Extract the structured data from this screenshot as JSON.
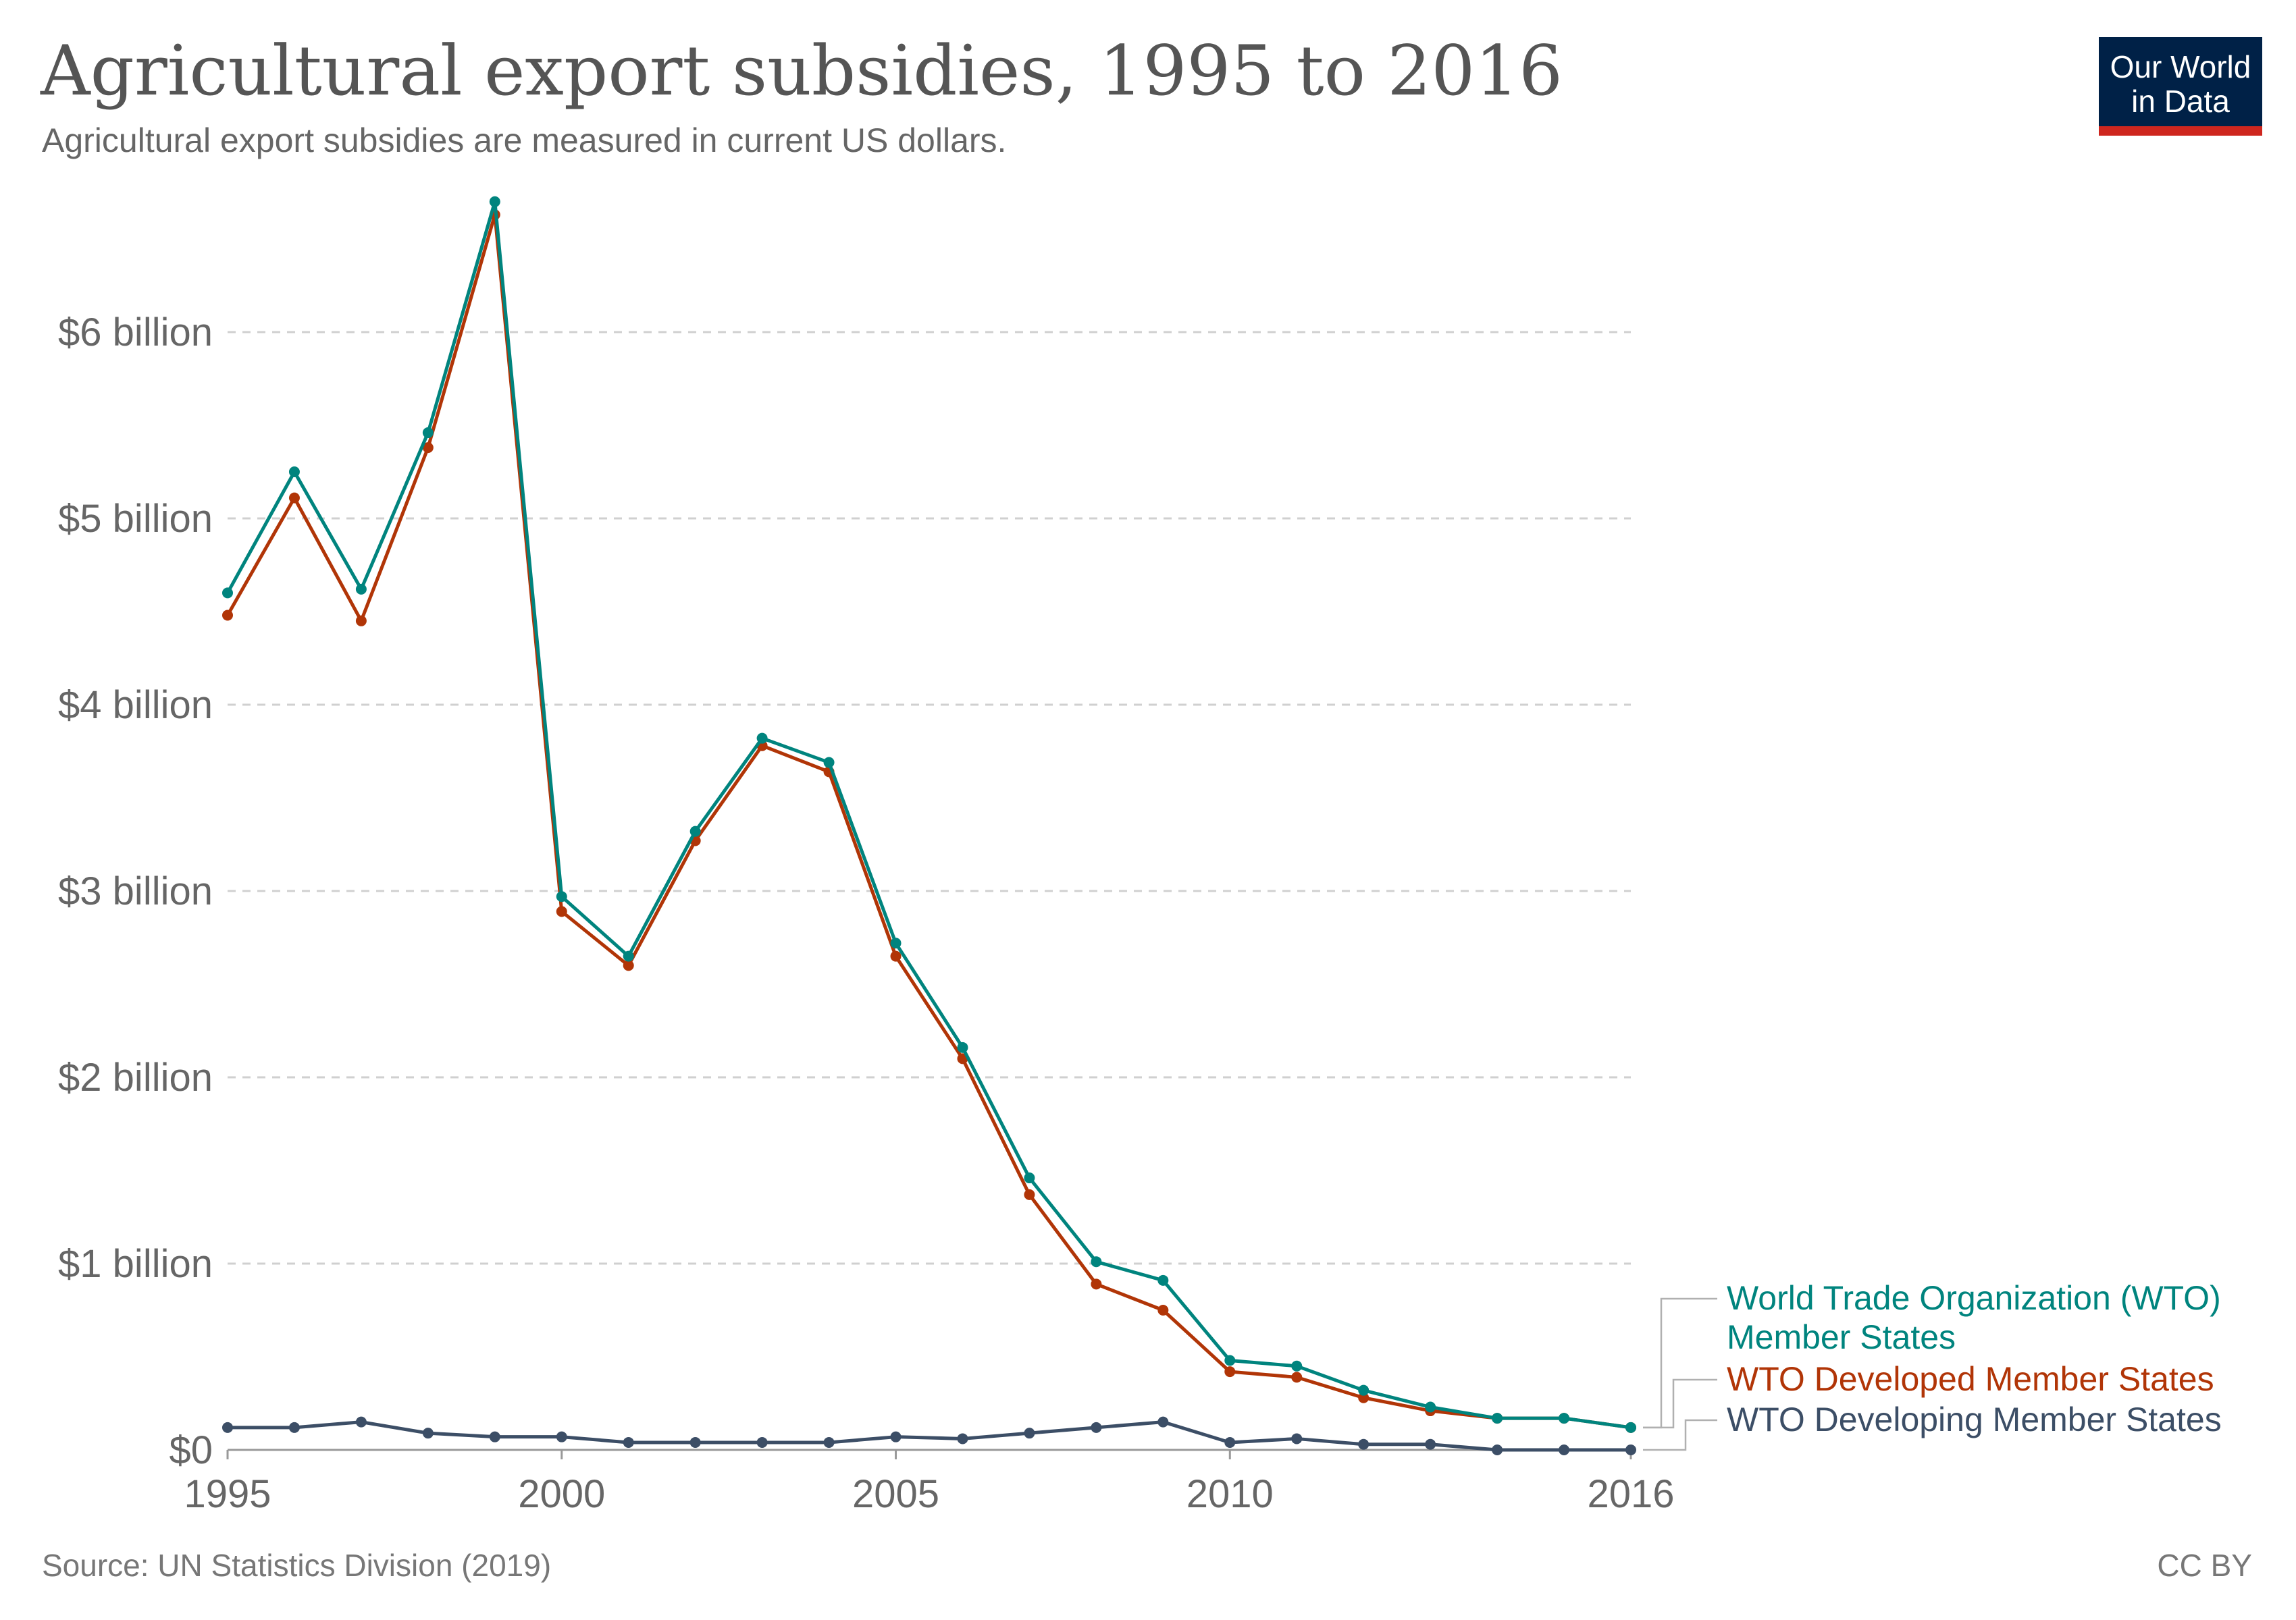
{
  "header": {
    "title": "Agricultural export subsidies, 1995 to 2016",
    "subtitle": "Agricultural export subsidies are measured in current US dollars."
  },
  "logo": {
    "line1": "Our World",
    "line2": "in Data",
    "bg_color": "#002147",
    "accent_color": "#ce261e"
  },
  "footer": {
    "source": "Source: UN Statistics Division (2019)",
    "license": "CC BY"
  },
  "chart_data": {
    "type": "line",
    "title": "Agricultural export subsidies, 1995 to 2016",
    "subtitle": "Agricultural export subsidies are measured in current US dollars.",
    "xlabel": "",
    "ylabel": "",
    "x": [
      1995,
      1996,
      1997,
      1998,
      1999,
      2000,
      2001,
      2002,
      2003,
      2004,
      2005,
      2006,
      2007,
      2008,
      2009,
      2010,
      2011,
      2012,
      2013,
      2014,
      2015,
      2016
    ],
    "x_ticks": [
      1995,
      2000,
      2005,
      2010,
      2016
    ],
    "y_ticks": [
      0,
      1,
      2,
      3,
      4,
      5,
      6
    ],
    "y_tick_labels": [
      "$0",
      "$1 billion",
      "$2 billion",
      "$3 billion",
      "$4 billion",
      "$5 billion",
      "$6 billion"
    ],
    "xlim": [
      1995,
      2016
    ],
    "ylim": [
      0,
      6.7
    ],
    "y_unit": "billion US dollars",
    "grid": "horizontal dashed",
    "legend": "right, at line ends",
    "series": [
      {
        "name": "World Trade Organization (WTO) Member States",
        "label_lines": [
          "World Trade Organization (WTO)",
          "Member States"
        ],
        "color": "#00847e",
        "values": [
          4.6,
          5.25,
          4.62,
          5.46,
          6.7,
          2.97,
          2.65,
          3.32,
          3.82,
          3.69,
          2.72,
          2.16,
          1.46,
          1.01,
          0.91,
          0.48,
          0.45,
          0.32,
          0.23,
          0.17,
          0.17,
          0.12
        ]
      },
      {
        "name": "WTO Developed Member States",
        "label_lines": [
          "WTO Developed Member States"
        ],
        "color": "#b13507",
        "values": [
          4.48,
          5.11,
          4.45,
          5.38,
          6.63,
          2.89,
          2.6,
          3.27,
          3.78,
          3.64,
          2.65,
          2.1,
          1.37,
          0.89,
          0.75,
          0.42,
          0.39,
          0.28,
          0.21,
          0.17,
          0.17,
          0.12
        ]
      },
      {
        "name": "WTO Developing Member States",
        "label_lines": [
          "WTO Developing Member States"
        ],
        "color": "#3c4e66",
        "values": [
          0.12,
          0.12,
          0.15,
          0.09,
          0.07,
          0.07,
          0.04,
          0.04,
          0.04,
          0.04,
          0.07,
          0.06,
          0.09,
          0.12,
          0.15,
          0.04,
          0.06,
          0.03,
          0.03,
          0.0,
          0.0,
          0.0
        ]
      }
    ]
  }
}
